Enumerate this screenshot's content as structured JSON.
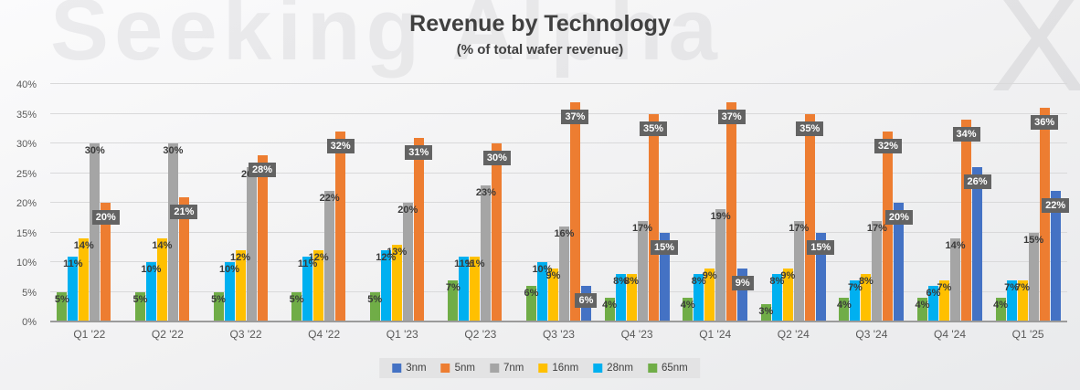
{
  "title": "Revenue by Technology",
  "subtitle": "(% of total wafer revenue)",
  "watermark": {
    "text": "Seeking Alpha",
    "symbol": "X"
  },
  "chart_data": {
    "type": "bar",
    "title": "Revenue by Technology",
    "subtitle": "(% of total wafer revenue)",
    "unit": "percent of total wafer revenue",
    "categories": [
      "Q1 '22",
      "Q2 '22",
      "Q3 '22",
      "Q4 '22",
      "Q1 '23",
      "Q2 '23",
      "Q3 '23",
      "Q4 '23",
      "Q1 '24",
      "Q2 '24",
      "Q3 '24",
      "Q4 '24",
      "Q1 '25"
    ],
    "series": [
      {
        "name": "3nm",
        "color": "#4472C4",
        "boxed_labels": true,
        "values": [
          null,
          null,
          null,
          null,
          null,
          null,
          6,
          15,
          9,
          15,
          20,
          26,
          22
        ]
      },
      {
        "name": "5nm",
        "color": "#ED7D31",
        "boxed_labels": true,
        "values": [
          20,
          21,
          28,
          32,
          31,
          30,
          37,
          35,
          37,
          35,
          32,
          34,
          36
        ]
      },
      {
        "name": "7nm",
        "color": "#A5A5A5",
        "boxed_labels": false,
        "values": [
          30,
          30,
          26,
          22,
          20,
          23,
          16,
          17,
          19,
          17,
          17,
          14,
          15
        ]
      },
      {
        "name": "16nm",
        "color": "#FFC000",
        "boxed_labels": false,
        "values": [
          14,
          14,
          12,
          12,
          13,
          11,
          9,
          8,
          9,
          9,
          8,
          7,
          7
        ]
      },
      {
        "name": "28nm",
        "color": "#00B0F0",
        "boxed_labels": false,
        "values": [
          11,
          10,
          10,
          11,
          12,
          11,
          10,
          8,
          8,
          8,
          7,
          6,
          7
        ]
      },
      {
        "name": "65nm",
        "color": "#70AD47",
        "boxed_labels": false,
        "values": [
          5,
          5,
          5,
          5,
          5,
          7,
          6,
          4,
          4,
          3,
          4,
          4,
          4
        ]
      }
    ],
    "bar_order": [
      "65nm",
      "28nm",
      "16nm",
      "7nm",
      "5nm",
      "3nm"
    ],
    "legend": [
      "3nm",
      "5nm",
      "7nm",
      "16nm",
      "28nm",
      "65nm"
    ],
    "legend_position": "bottom",
    "ylim": [
      0,
      40
    ],
    "yticks": [
      "0%",
      "5%",
      "10%",
      "15%",
      "20%",
      "25%",
      "30%",
      "35%",
      "40%"
    ],
    "grid": true,
    "label_box_color": "#636363",
    "label_box_text_color": "#FFFFFF"
  }
}
